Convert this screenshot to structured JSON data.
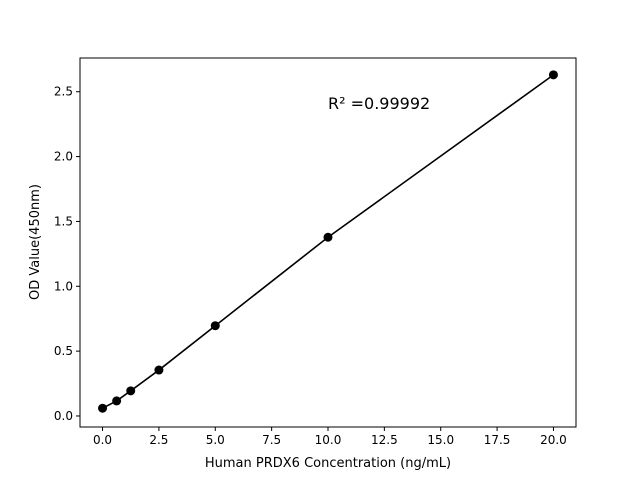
{
  "chart_data": {
    "type": "line",
    "title": "",
    "xlabel": "Human PRDX6 Concentration (ng/mL)",
    "ylabel": "OD Value(450nm)",
    "xlim": [
      -1,
      21
    ],
    "ylim": [
      -0.085,
      2.76
    ],
    "x_ticks": [
      "0.0",
      "2.5",
      "5.0",
      "7.5",
      "10.0",
      "12.5",
      "15.0",
      "17.5",
      "20.0"
    ],
    "y_ticks": [
      "0.0",
      "0.5",
      "1.0",
      "1.5",
      "2.0",
      "2.5"
    ],
    "grid": false,
    "annotation": "R² =0.99992",
    "series": [
      {
        "x": [
          0,
          0.625,
          1.25,
          2.5,
          5,
          10,
          20
        ],
        "y": [
          0.06,
          0.116,
          0.194,
          0.354,
          0.696,
          1.378,
          2.63
        ],
        "color": "#000000",
        "marker": "circle"
      }
    ]
  }
}
